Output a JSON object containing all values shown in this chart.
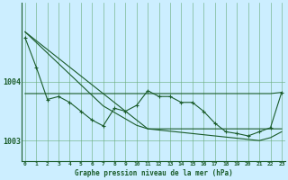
{
  "bg_color": "#cceeff",
  "grid_color": "#66aa77",
  "line_color": "#1a5c2a",
  "xlabel": "Graphe pression niveau de la mer (hPa)",
  "hours": [
    0,
    1,
    2,
    3,
    4,
    5,
    6,
    7,
    8,
    9,
    10,
    11,
    12,
    13,
    14,
    15,
    16,
    17,
    18,
    19,
    20,
    21,
    22,
    23
  ],
  "series_diag": [
    1004.85,
    1004.7,
    1004.55,
    1004.4,
    1004.25,
    1004.1,
    1003.95,
    1003.8,
    1003.65,
    1003.5,
    1003.35,
    1003.2,
    1003.2,
    1003.2,
    1003.2,
    1003.2,
    1003.2,
    1003.2,
    1003.2,
    1003.2,
    1003.2,
    1003.2,
    1003.2,
    1003.2
  ],
  "series_flat": [
    1003.8,
    1003.8,
    1003.8,
    1003.8,
    1003.8,
    1003.8,
    1003.8,
    1003.8,
    1003.8,
    1003.8,
    1003.8,
    1003.8,
    1003.8,
    1003.8,
    1003.8,
    1003.8,
    1003.8,
    1003.8,
    1003.8,
    1003.8,
    1003.8,
    1003.8,
    1003.8,
    1003.82
  ],
  "series_measured": [
    1004.75,
    1004.25,
    1003.7,
    1003.75,
    1003.65,
    1003.5,
    1003.35,
    1003.25,
    1003.55,
    1003.5,
    1003.6,
    1003.85,
    1003.75,
    1003.75,
    1003.65,
    1003.65,
    1003.5,
    1003.3,
    1003.15,
    1003.12,
    1003.08,
    1003.15,
    1003.22,
    1003.82
  ],
  "series_diag2": [
    1004.85,
    1004.67,
    1004.49,
    1004.31,
    1004.13,
    1003.95,
    1003.77,
    1003.59,
    1003.48,
    1003.37,
    1003.26,
    1003.2,
    1003.18,
    1003.16,
    1003.14,
    1003.12,
    1003.1,
    1003.08,
    1003.06,
    1003.04,
    1003.02,
    1003.0,
    1003.05,
    1003.15
  ],
  "ylim_min": 1002.65,
  "ylim_max": 1005.35,
  "ytick_positions": [
    1003.0,
    1004.0
  ],
  "ytick_labels": [
    "1003",
    "1004"
  ],
  "figsize": [
    3.2,
    2.0
  ],
  "dpi": 100
}
